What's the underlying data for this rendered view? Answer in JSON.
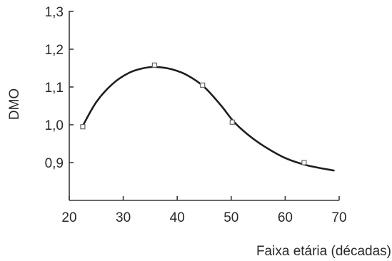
{
  "chart_data": {
    "type": "scatter",
    "xlabel": "Faixa etária (décadas)",
    "ylabel": "DMO",
    "xlim": [
      20,
      70
    ],
    "ylim": [
      0.8,
      1.3
    ],
    "x_ticks": [
      "20",
      "30",
      "40",
      "50",
      "60",
      "70"
    ],
    "y_ticks": [
      "0,9",
      "1,0",
      "1,1",
      "1,2",
      "1,3"
    ],
    "x_tick_values": [
      20,
      30,
      40,
      50,
      60,
      70
    ],
    "y_tick_values": [
      0.9,
      1.0,
      1.1,
      1.2,
      1.3
    ],
    "series": [
      {
        "style": "markers",
        "marker": "square",
        "x": [
          22.5,
          35.8,
          44.7,
          50.2,
          63.5
        ],
        "y": [
          0.995,
          1.158,
          1.105,
          1.007,
          0.9
        ]
      },
      {
        "style": "smooth-line",
        "x": [
          22.5,
          25,
          28,
          31,
          33.5,
          36,
          39,
          42,
          45,
          48,
          50.5,
          53,
          56,
          60,
          64,
          69
        ],
        "y": [
          0.997,
          1.06,
          1.108,
          1.137,
          1.149,
          1.153,
          1.147,
          1.13,
          1.1,
          1.053,
          1.008,
          0.975,
          0.944,
          0.912,
          0.893,
          0.879
        ]
      }
    ],
    "grid": false,
    "legend": "none"
  }
}
